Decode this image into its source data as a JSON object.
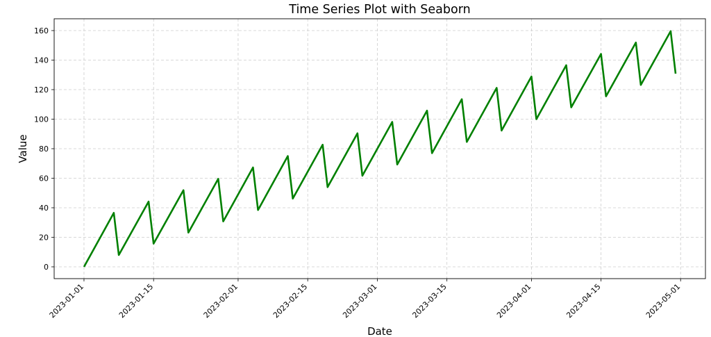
{
  "chart_data": {
    "type": "line",
    "title": "Time Series Plot with Seaborn",
    "xlabel": "Date",
    "ylabel": "Value",
    "grid": true,
    "line_color": "#008000",
    "xlim": [
      "2022-12-26",
      "2023-05-06"
    ],
    "ylim": [
      -8,
      168
    ],
    "x_ticks": [
      "2023-01-01",
      "2023-01-15",
      "2023-02-01",
      "2023-02-15",
      "2023-03-01",
      "2023-03-15",
      "2023-04-01",
      "2023-04-15",
      "2023-05-01"
    ],
    "y_ticks": [
      0,
      20,
      40,
      60,
      80,
      100,
      120,
      140,
      160
    ],
    "series": [
      {
        "x": [
          "2023-01-01",
          "2023-01-07",
          "2023-01-08",
          "2023-01-14",
          "2023-01-15",
          "2023-01-21",
          "2023-01-22",
          "2023-01-28",
          "2023-01-29",
          "2023-02-04",
          "2023-02-05",
          "2023-02-11",
          "2023-02-12",
          "2023-02-18",
          "2023-02-19",
          "2023-02-25",
          "2023-02-26",
          "2023-03-04",
          "2023-03-05",
          "2023-03-11",
          "2023-03-12",
          "2023-03-18",
          "2023-03-19",
          "2023-03-25",
          "2023-03-26",
          "2023-04-01",
          "2023-04-02",
          "2023-04-08",
          "2023-04-09",
          "2023-04-15",
          "2023-04-16",
          "2023-04-22",
          "2023-04-23",
          "2023-04-29",
          "2023-04-30"
        ],
        "y": [
          0,
          36.5,
          8,
          44.2,
          15.7,
          51.9,
          23.2,
          59.6,
          30.8,
          67.3,
          38.5,
          75.0,
          46.2,
          82.7,
          54.0,
          90.4,
          61.7,
          98.1,
          69.3,
          105.8,
          77.0,
          113.5,
          84.6,
          121.2,
          92.3,
          128.9,
          100.0,
          136.5,
          108.0,
          144.2,
          115.5,
          151.9,
          123.2,
          159.6,
          130.8
        ]
      }
    ]
  }
}
